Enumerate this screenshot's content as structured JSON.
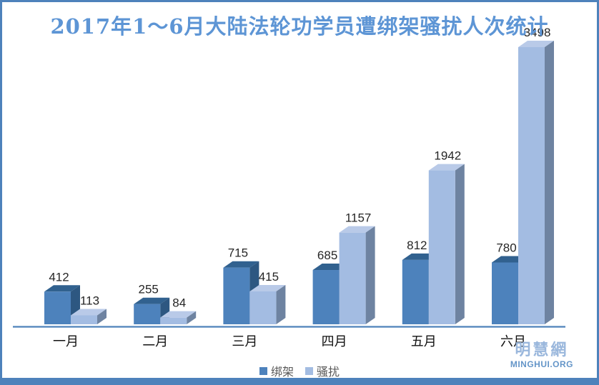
{
  "chart_data": {
    "type": "bar",
    "variant": "3d-clustered",
    "title": "2017年1～6月大陆法轮功学员遭绑架骚扰人次统计",
    "categories": [
      "一月",
      "二月",
      "三月",
      "四月",
      "五月",
      "六月"
    ],
    "series": [
      {
        "id": "kidnapping",
        "name": "绑架",
        "values": [
          412,
          255,
          715,
          685,
          812,
          780
        ],
        "colors": {
          "front": "#4d82bc",
          "top": "#31618f",
          "side": "#2d5781"
        }
      },
      {
        "id": "harassment",
        "name": "骚扰",
        "values": [
          113,
          84,
          415,
          1157,
          1942,
          3498
        ],
        "colors": {
          "front": "#a3bce2",
          "top": "#b9cae8",
          "side": "#6e83a1"
        }
      }
    ],
    "value_labels": [
      [
        "412",
        "255",
        "715",
        "685",
        "812",
        "780"
      ],
      [
        "113",
        "84",
        "415",
        "1157",
        "1942",
        "3498"
      ]
    ],
    "ylim": [
      0,
      3498
    ],
    "grid": false,
    "legend_position": "bottom",
    "axis_color": "#4e82bb",
    "value_label_color": "#262626",
    "category_label_color": "#111111"
  },
  "title_color": "#5d95d5",
  "legend_text_color": "#595959",
  "branding": {
    "site_name": "明慧網",
    "site_url": "MINGHUI.ORG",
    "name_color": "#9ab7dc",
    "url_color": "#6495c8"
  },
  "frame": {
    "border_color": "#4e82bb",
    "strip_color": "#4e82bb",
    "background": "#ffffff"
  }
}
